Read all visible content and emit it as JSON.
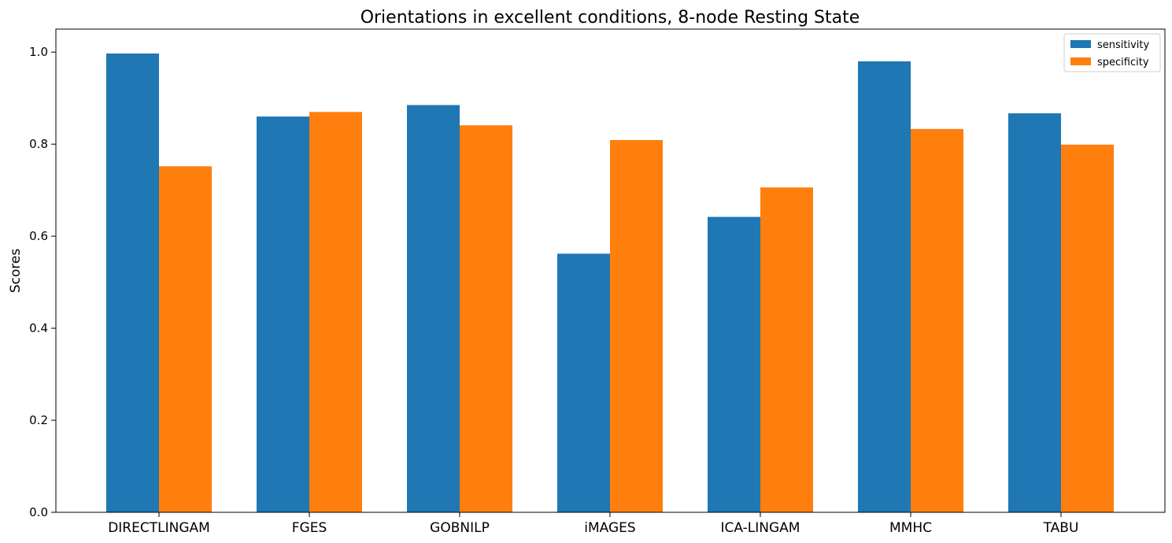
{
  "chart_data": {
    "type": "bar",
    "title": "Orientations in excellent conditions, 8-node Resting State",
    "xlabel": "",
    "ylabel": "Scores",
    "ylim": [
      0,
      1.05
    ],
    "yticks": [
      0.0,
      0.2,
      0.4,
      0.6,
      0.8,
      1.0
    ],
    "ytick_labels": [
      "0.0",
      "0.2",
      "0.4",
      "0.6",
      "0.8",
      "1.0"
    ],
    "categories": [
      "DIRECTLINGAM",
      "FGES",
      "GOBNILP",
      "iMAGES",
      "ICA-LINGAM",
      "MMHC",
      "TABU"
    ],
    "series": [
      {
        "name": "sensitivity",
        "color": "#1f77b4",
        "values": [
          0.997,
          0.86,
          0.885,
          0.562,
          0.642,
          0.98,
          0.867
        ]
      },
      {
        "name": "specificity",
        "color": "#ff7f0e",
        "values": [
          0.752,
          0.87,
          0.841,
          0.809,
          0.706,
          0.833,
          0.799
        ]
      }
    ],
    "legend_position": "top-right",
    "grid": false
  }
}
